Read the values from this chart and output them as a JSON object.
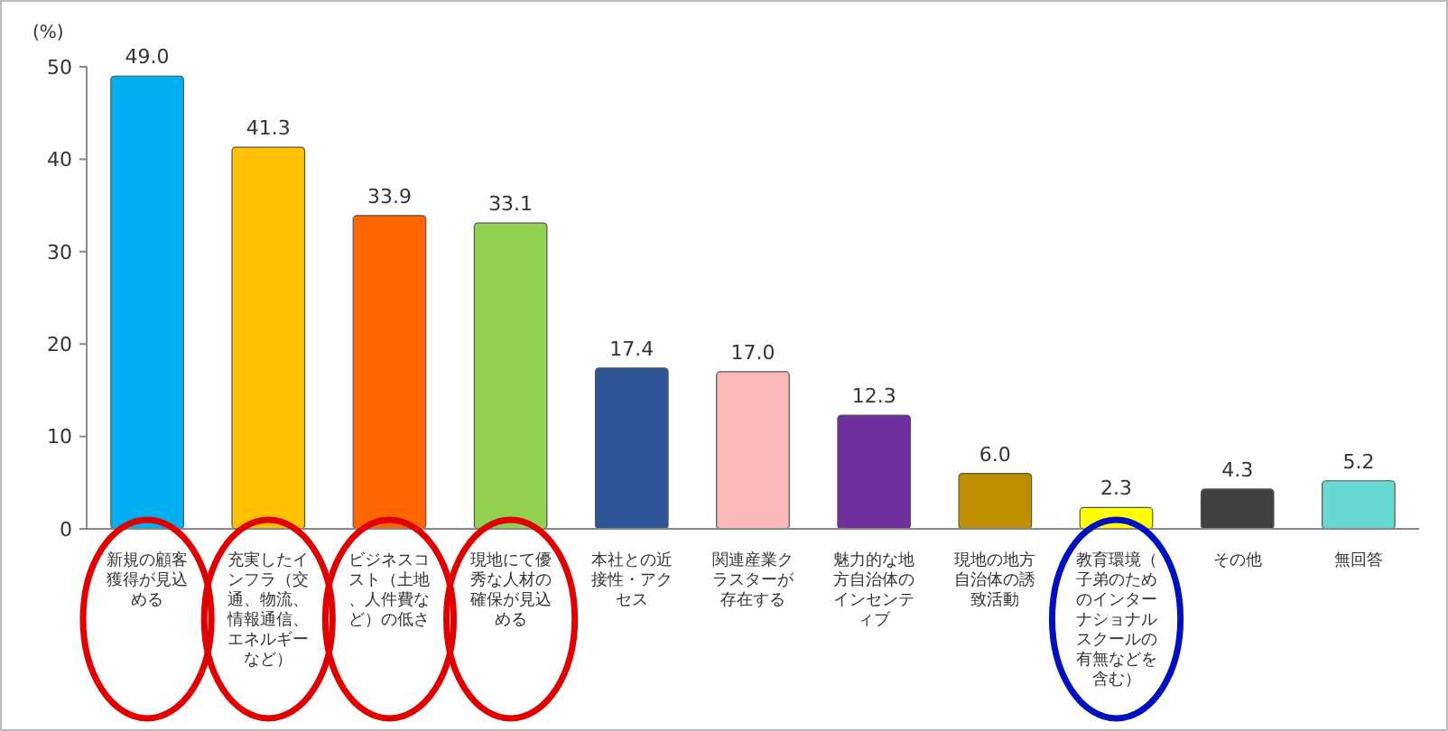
{
  "chart_data": {
    "type": "bar",
    "ylabel": "(%)",
    "categories": [
      "新規の顧客獲得が見込める",
      "充実したインフラ（交通、物流、情報通信、エネルギーなど）",
      "ビジネスコスト（土地、人件費など）の低さ",
      "現地にて優秀な人材の確保が見込める",
      "本社との近接性・アクセス",
      "関連産業クラスターが存在する",
      "魅力的な地方自治体のインセンティブ",
      "現地の地方自治体の誘致活動",
      "教育環境（子弟のためのインターナショナルスクールの有無などを含む）",
      "その他",
      "無回答"
    ],
    "values": [
      49.0,
      41.3,
      33.9,
      33.1,
      17.4,
      17.0,
      12.3,
      6.0,
      2.3,
      4.3,
      5.2
    ],
    "value_labels": [
      "49.0",
      "41.3",
      "33.9",
      "33.1",
      "17.4",
      "17.0",
      "12.3",
      "6.0",
      "2.3",
      "4.3",
      "5.2"
    ],
    "colors": [
      "#00b0f0",
      "#ffc000",
      "#ff6600",
      "#92d050",
      "#2e5597",
      "#f9b9b7",
      "#7030a0",
      "#bf8f00",
      "#ffff00",
      "#404040",
      "#66d9d0"
    ],
    "ylim": [
      0,
      50
    ],
    "yticks": [
      0,
      10,
      20,
      30,
      40,
      50
    ]
  }
}
